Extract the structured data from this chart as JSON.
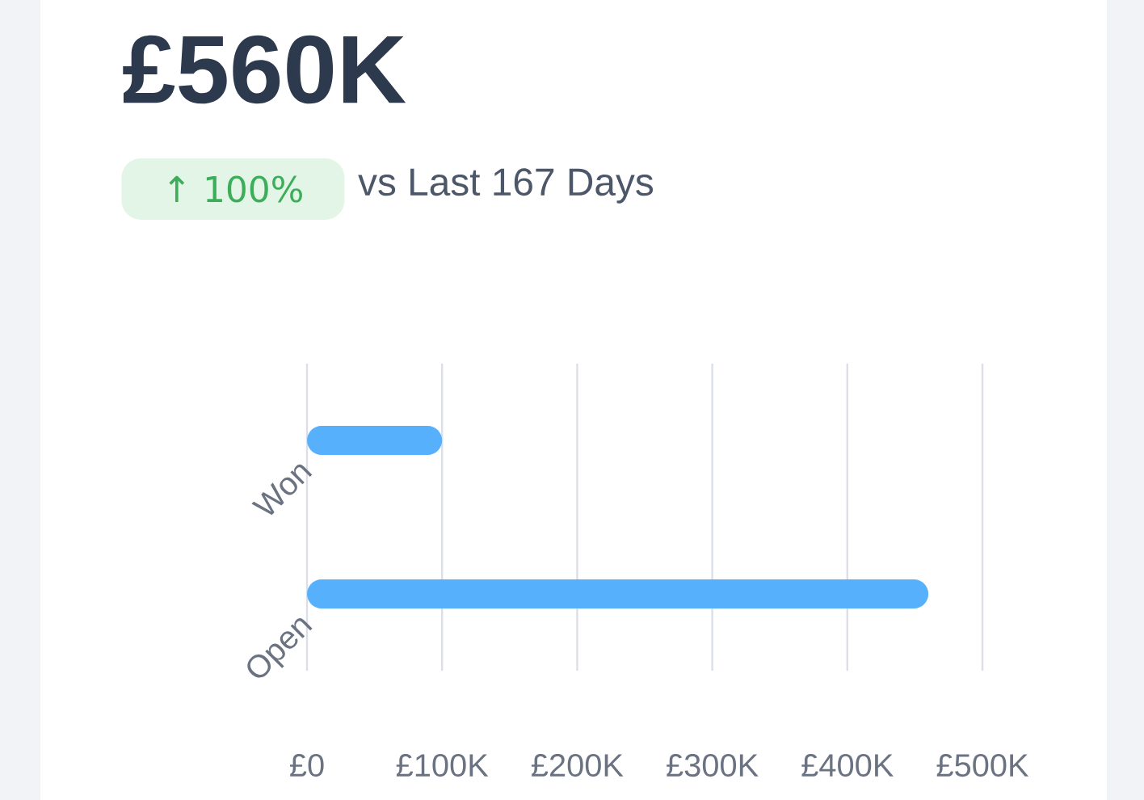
{
  "chart_data": {
    "type": "bar",
    "orientation": "horizontal",
    "title": "£560K",
    "subtitle": "vs Last 167 Days",
    "annotations": [
      "↑ 100%"
    ],
    "categories": [
      "Won",
      "Open"
    ],
    "series": [
      {
        "color": "#56b0fb",
        "values": [
          100000,
          460000
        ]
      }
    ],
    "xlim": [
      0,
      500000
    ],
    "xticks": [
      {
        "value": 0,
        "label": "£0"
      },
      {
        "value": 100000,
        "label": "£100K"
      },
      {
        "value": 200000,
        "label": "£200K"
      },
      {
        "value": 300000,
        "label": "£300K"
      },
      {
        "value": 400000,
        "label": "£400K"
      },
      {
        "value": 500000,
        "label": "£500K"
      }
    ],
    "grid": "x"
  }
}
